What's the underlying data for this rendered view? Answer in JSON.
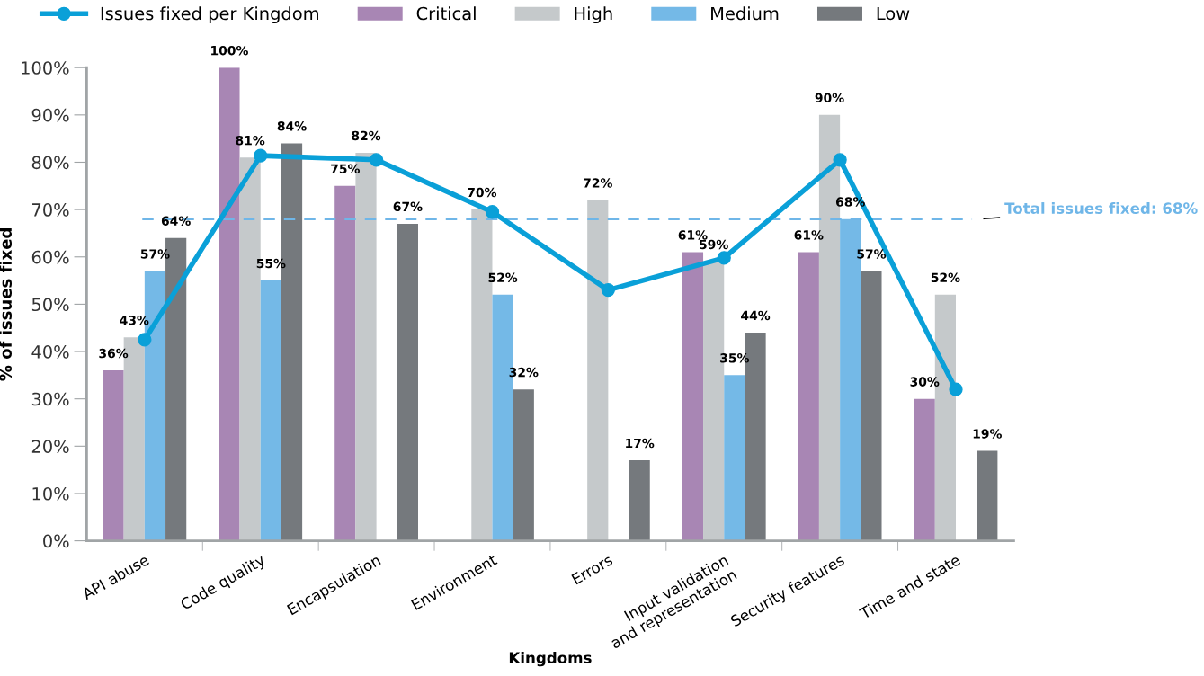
{
  "chart_data": {
    "type": "bar",
    "xlabel": "Kingdoms",
    "ylabel": "% of issues fixed",
    "categories": [
      "API abuse",
      "Code quality",
      "Encapsulation",
      "Environment",
      "Errors",
      "Input validation\nand representation",
      "Security features",
      "Time and state"
    ],
    "series": [
      {
        "name": "Issues fixed per Kingdom",
        "type": "line",
        "color": "#0aa0d8",
        "values": [
          42.5,
          81.4,
          80.5,
          69.5,
          53,
          59.8,
          80.5,
          32
        ]
      },
      {
        "name": "Critical",
        "color": "#a886b4",
        "values": [
          36,
          100,
          75,
          null,
          null,
          61,
          61,
          30
        ],
        "value_labels": [
          "36%",
          "100%",
          "75%",
          null,
          null,
          "61%",
          "61%",
          "30%"
        ]
      },
      {
        "name": "High",
        "color": "#c5c9cb",
        "values": [
          43,
          81,
          82,
          70,
          72,
          59,
          90,
          52
        ],
        "value_labels": [
          "43%",
          "81%",
          "82%",
          "70%",
          "72%",
          "59%",
          "90%",
          "52%"
        ]
      },
      {
        "name": "Medium",
        "color": "#74b9e7",
        "values": [
          57,
          55,
          null,
          52,
          null,
          35,
          68,
          null
        ],
        "value_labels": [
          "57%",
          "55%",
          null,
          "52%",
          null,
          "35%",
          "68%",
          null
        ]
      },
      {
        "name": "Low",
        "color": "#75797d",
        "values": [
          64,
          84,
          67,
          32,
          17,
          44,
          57,
          19
        ],
        "value_labels": [
          "64%",
          "84%",
          "67%",
          "32%",
          "17%",
          "44%",
          "57%",
          "19%"
        ]
      }
    ],
    "ylim": [
      0,
      100
    ],
    "yticks": [
      {
        "value": 0,
        "label": "0%"
      },
      {
        "value": 10,
        "label": "10%"
      },
      {
        "value": 20,
        "label": "20%"
      },
      {
        "value": 30,
        "label": "30%"
      },
      {
        "value": 40,
        "label": "40%"
      },
      {
        "value": 50,
        "label": "50%"
      },
      {
        "value": 60,
        "label": "60%"
      },
      {
        "value": 70,
        "label": "70%"
      },
      {
        "value": 80,
        "label": "80%"
      },
      {
        "value": 90,
        "label": "90%"
      },
      {
        "value": 100,
        "label": "100%"
      }
    ],
    "ref_lines": [
      {
        "axis": "y",
        "value": 68,
        "label": "Total issues fixed: 68%",
        "color": "#6fb6e8",
        "line_style": "dashed"
      }
    ],
    "marker": "circle",
    "grid": false,
    "legend": "top"
  }
}
